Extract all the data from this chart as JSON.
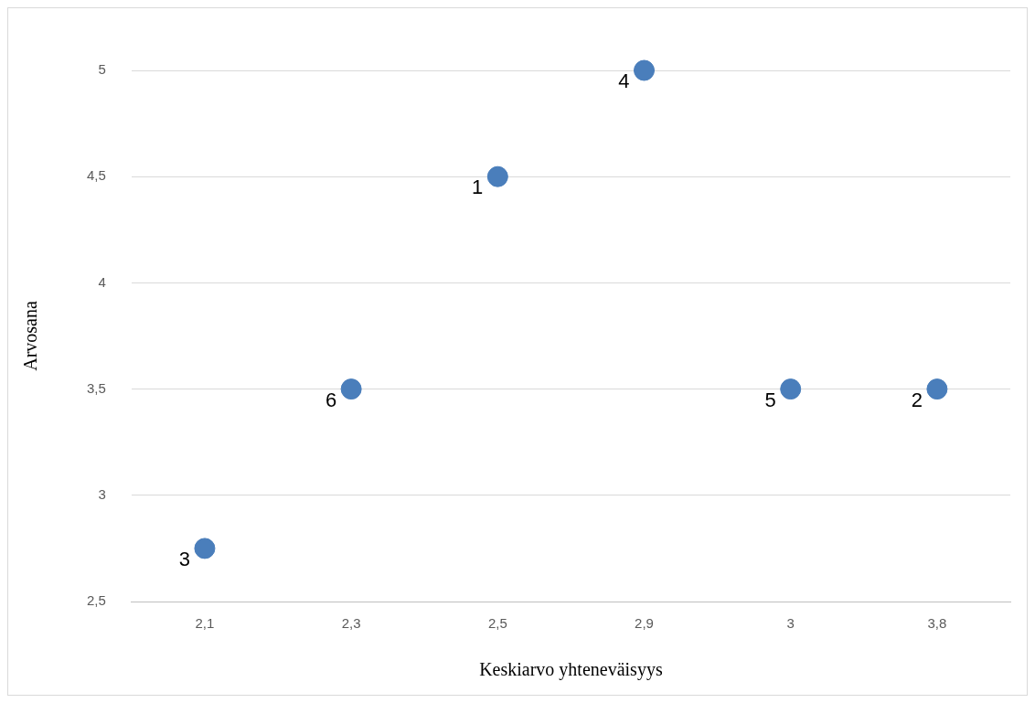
{
  "chart_data": {
    "type": "scatter",
    "xlabel": "Keskiarvo yhteneväisyys",
    "ylabel": "Arvosana",
    "categories": [
      "2,1",
      "2,3",
      "2,5",
      "2,9",
      "3",
      "3,8"
    ],
    "values": [
      2.75,
      3.5,
      4.5,
      5,
      3.5,
      3.5
    ],
    "color": "#4a7ebb",
    "ylim": [
      2.5,
      5
    ],
    "yticks": [
      {
        "value": 2.5,
        "label": "2,5"
      },
      3,
      {
        "value": 3.5,
        "label": "3,5"
      },
      4,
      {
        "value": 4.5,
        "label": "4,5"
      },
      5
    ],
    "grid": "y",
    "legend": false,
    "marker": "circle",
    "annotations": [
      {
        "text": "3",
        "x": "2,1",
        "y": 2.75
      },
      {
        "text": "6",
        "x": "2,3",
        "y": 3.5
      },
      {
        "text": "1",
        "x": "2,5",
        "y": 4.5
      },
      {
        "text": "4",
        "x": "2,9",
        "y": 5
      },
      {
        "text": "5",
        "x": "3",
        "y": 3.5
      },
      {
        "text": "2",
        "x": "3,8",
        "y": 3.5
      }
    ]
  }
}
